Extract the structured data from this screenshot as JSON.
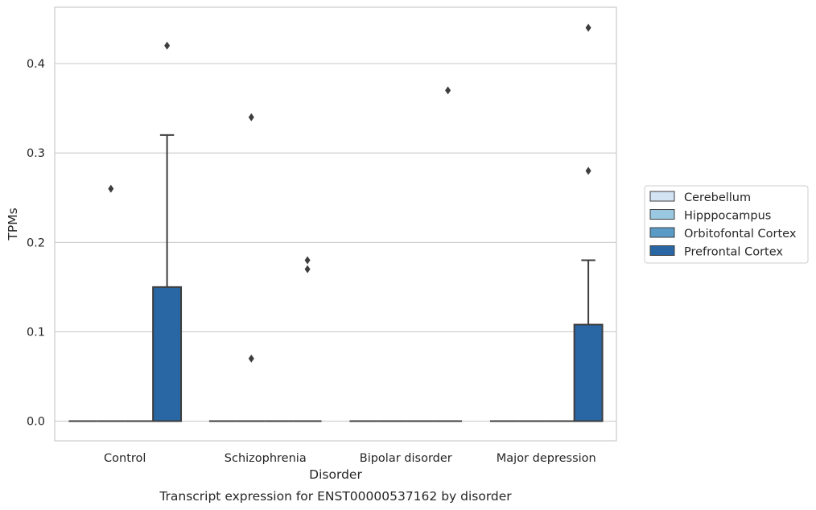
{
  "chart_data": {
    "type": "box",
    "xlabel": "Disorder",
    "ylabel": "TPMs",
    "caption": "Transcript expression for ENST00000537162 by disorder",
    "categories": [
      "Control",
      "Schizophrenia",
      "Bipolar disorder",
      "Major depression"
    ],
    "ylim": [
      -0.022,
      0.463
    ],
    "yticks": [
      0.0,
      0.1,
      0.2,
      0.3,
      0.4
    ],
    "ytick_labels": [
      "0.0",
      "0.1",
      "0.2",
      "0.3",
      "0.4"
    ],
    "grid": true,
    "legend_position": "right",
    "series": [
      {
        "name": "Cerebellum",
        "color": "#d3e3f3",
        "boxes": [
          {
            "q1": 0,
            "median": 0,
            "q3": 0,
            "whisker_low": 0,
            "whisker_high": 0,
            "outliers": []
          },
          {
            "q1": 0,
            "median": 0,
            "q3": 0,
            "whisker_low": 0,
            "whisker_high": 0,
            "outliers": []
          },
          {
            "q1": 0,
            "median": 0,
            "q3": 0,
            "whisker_low": 0,
            "whisker_high": 0,
            "outliers": []
          },
          {
            "q1": 0,
            "median": 0,
            "q3": 0,
            "whisker_low": 0,
            "whisker_high": 0,
            "outliers": []
          }
        ]
      },
      {
        "name": "Hipppocampus",
        "color": "#9ac8e0",
        "boxes": [
          {
            "q1": 0,
            "median": 0,
            "q3": 0,
            "whisker_low": 0,
            "whisker_high": 0,
            "outliers": [
              0.26
            ]
          },
          {
            "q1": 0,
            "median": 0,
            "q3": 0,
            "whisker_low": 0,
            "whisker_high": 0,
            "outliers": [
              0.34,
              0.07
            ]
          },
          {
            "q1": 0,
            "median": 0,
            "q3": 0,
            "whisker_low": 0,
            "whisker_high": 0,
            "outliers": []
          },
          {
            "q1": 0,
            "median": 0,
            "q3": 0,
            "whisker_low": 0,
            "whisker_high": 0,
            "outliers": []
          }
        ]
      },
      {
        "name": "Orbitofontal Cortex",
        "color": "#5a9ac6",
        "boxes": [
          {
            "q1": 0,
            "median": 0,
            "q3": 0,
            "whisker_low": 0,
            "whisker_high": 0,
            "outliers": []
          },
          {
            "q1": 0,
            "median": 0,
            "q3": 0,
            "whisker_low": 0,
            "whisker_high": 0,
            "outliers": []
          },
          {
            "q1": 0,
            "median": 0,
            "q3": 0,
            "whisker_low": 0,
            "whisker_high": 0,
            "outliers": []
          },
          {
            "q1": 0,
            "median": 0,
            "q3": 0,
            "whisker_low": 0,
            "whisker_high": 0,
            "outliers": []
          }
        ]
      },
      {
        "name": "Prefrontal Cortex",
        "color": "#2866a4",
        "boxes": [
          {
            "q1": 0,
            "median": 0,
            "q3": 0.15,
            "whisker_low": 0,
            "whisker_high": 0.32,
            "outliers": [
              0.42
            ]
          },
          {
            "q1": 0,
            "median": 0,
            "q3": 0,
            "whisker_low": 0,
            "whisker_high": 0,
            "outliers": [
              0.18,
              0.17
            ]
          },
          {
            "q1": 0,
            "median": 0,
            "q3": 0,
            "whisker_low": 0,
            "whisker_high": 0,
            "outliers": [
              0.37
            ]
          },
          {
            "q1": 0,
            "median": 0,
            "q3": 0.108,
            "whisker_low": 0,
            "whisker_high": 0.18,
            "outliers": [
              0.44,
              0.28
            ]
          }
        ]
      }
    ]
  }
}
